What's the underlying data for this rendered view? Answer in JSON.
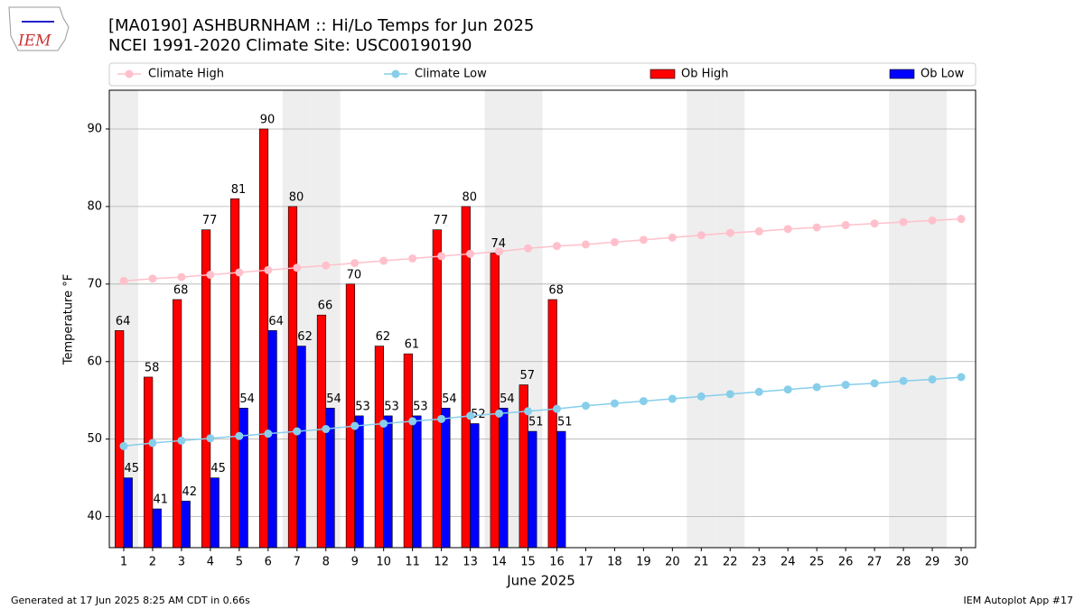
{
  "chart_data": {
    "type": "bar",
    "title": "[MA0190] ASHBURNHAM :: Hi/Lo Temps for Jun 2025",
    "subtitle": "NCEI 1991-2020 Climate Site: USC00190190",
    "logo": "IEM",
    "x_label": "June 2025",
    "y_label": "Temperature °F",
    "footer_left": "Generated at 17 Jun 2025 8:25 AM CDT in 0.66s",
    "footer_right": "IEM Autoplot App #17",
    "x": [
      1,
      2,
      3,
      4,
      5,
      6,
      7,
      8,
      9,
      10,
      11,
      12,
      13,
      14,
      15,
      16,
      17,
      18,
      19,
      20,
      21,
      22,
      23,
      24,
      25,
      26,
      27,
      28,
      29,
      30
    ],
    "xlim": [
      0.5,
      30.5
    ],
    "ylim": [
      36,
      95
    ],
    "yticks": [
      40,
      50,
      60,
      70,
      80,
      90
    ],
    "grid": true,
    "legend": "top",
    "shaded_days": [
      1,
      7,
      8,
      14,
      15,
      21,
      22,
      28,
      29
    ],
    "series": [
      {
        "name": "Climate High",
        "type": "line",
        "color": "#ffc0cb",
        "values": [
          70.4,
          70.7,
          70.9,
          71.2,
          71.5,
          71.8,
          72.1,
          72.4,
          72.7,
          73.0,
          73.3,
          73.6,
          73.9,
          74.2,
          74.6,
          74.9,
          75.1,
          75.4,
          75.7,
          76.0,
          76.3,
          76.6,
          76.8,
          77.1,
          77.3,
          77.6,
          77.8,
          78.0,
          78.2,
          78.4
        ]
      },
      {
        "name": "Climate Low",
        "type": "line",
        "color": "#87ceeb",
        "values": [
          49.1,
          49.5,
          49.8,
          50.1,
          50.4,
          50.7,
          51.0,
          51.3,
          51.7,
          52.0,
          52.3,
          52.6,
          53.0,
          53.3,
          53.6,
          53.9,
          54.3,
          54.6,
          54.9,
          55.2,
          55.5,
          55.8,
          56.1,
          56.4,
          56.7,
          57.0,
          57.2,
          57.5,
          57.7,
          58.0
        ]
      },
      {
        "name": "Ob High",
        "type": "bar",
        "color": "#ff0000",
        "values": [
          64,
          58,
          68,
          77,
          81,
          90,
          80,
          66,
          70,
          62,
          61,
          77,
          80,
          74,
          57,
          68,
          null,
          null,
          null,
          null,
          null,
          null,
          null,
          null,
          null,
          null,
          null,
          null,
          null,
          null
        ]
      },
      {
        "name": "Ob Low",
        "type": "bar",
        "color": "#0000ff",
        "values": [
          45,
          41,
          42,
          45,
          54,
          64,
          62,
          54,
          53,
          53,
          53,
          54,
          52,
          54,
          51,
          51,
          null,
          null,
          null,
          null,
          null,
          null,
          null,
          null,
          null,
          null,
          null,
          null,
          null,
          null
        ]
      }
    ]
  }
}
